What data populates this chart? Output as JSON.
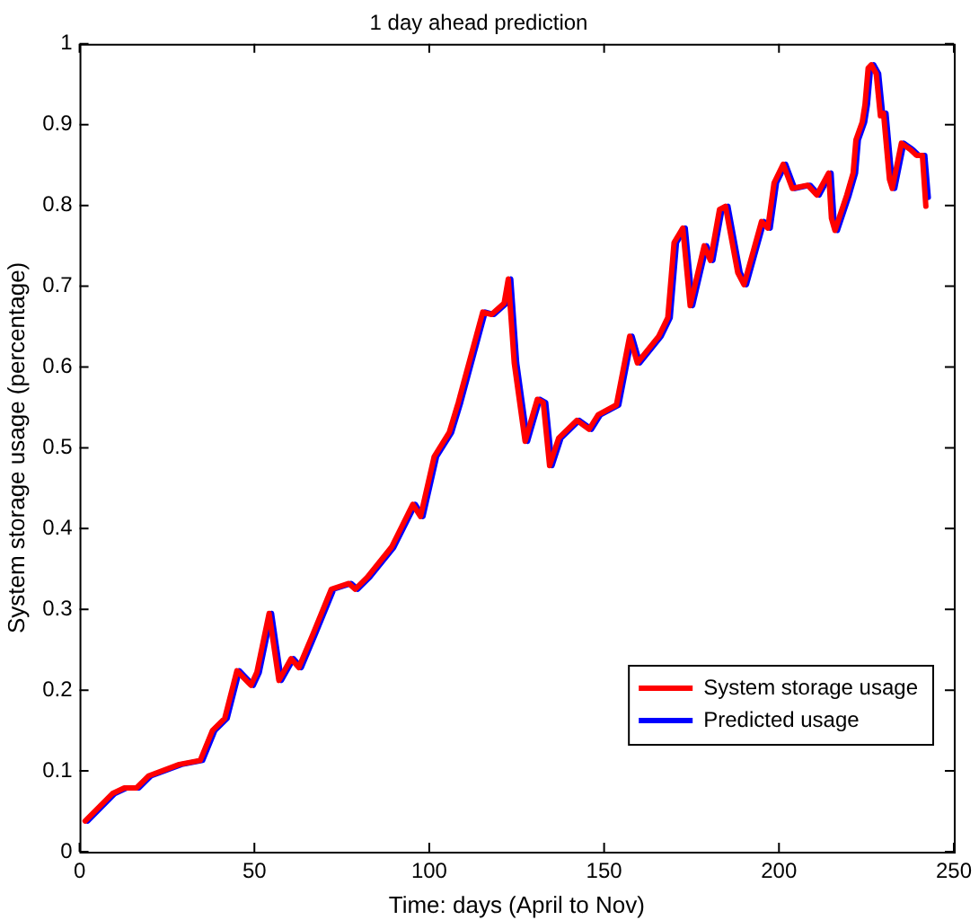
{
  "chart_data": {
    "type": "line",
    "title": "1 day ahead prediction",
    "xlabel": "Time: days (April to Nov)",
    "ylabel": "System storage usage (percentage)",
    "xlim": [
      0,
      250
    ],
    "xticks": [
      0,
      50,
      100,
      150,
      200,
      250
    ],
    "ylim": [
      0,
      1
    ],
    "yticks": [
      0,
      0.1,
      0.2,
      0.3,
      0.4,
      0.5,
      0.6,
      0.7,
      0.8,
      0.9,
      1
    ],
    "grid": false,
    "legend": "bottom right",
    "marker": "none",
    "line_style": "solid",
    "series": [
      {
        "name": "System storage usage",
        "color": "#ff0000",
        "x": [
          1.6,
          9.4,
          12.8,
          16.3,
          19.8,
          28.5,
          34.5,
          38,
          41.5,
          45,
          49,
          50.7,
          54.2,
          57,
          60.5,
          62.7,
          66.7,
          72,
          77,
          78.8,
          82.3,
          89.2,
          95.3,
          97.5,
          101.4,
          105.7,
          108.3,
          115.3,
          117.8,
          121.4,
          122.6,
          124.3,
          127.4,
          130.9,
          132.6,
          134.4,
          137,
          142.2,
          145.7,
          148.3,
          153.5,
          157.3,
          159.5,
          165.6,
          168.2,
          170,
          172.5,
          174.6,
          178.6,
          180.4,
          183,
          184.7,
          188.2,
          190,
          195,
          196.8,
          198.6,
          201.2,
          203.8,
          208.2,
          210.8,
          214.2,
          215,
          216,
          219.4,
          221.2,
          222,
          223.8,
          224.6,
          225.5,
          226.4,
          227.8,
          229,
          229.9,
          231.6,
          232.4,
          233.6,
          235,
          237.6,
          239.3,
          241,
          242
        ],
        "values": [
          0.038,
          0.072,
          0.079,
          0.079,
          0.094,
          0.108,
          0.113,
          0.15,
          0.165,
          0.224,
          0.206,
          0.222,
          0.295,
          0.212,
          0.239,
          0.228,
          0.269,
          0.325,
          0.332,
          0.325,
          0.34,
          0.377,
          0.43,
          0.415,
          0.489,
          0.519,
          0.556,
          0.668,
          0.665,
          0.679,
          0.709,
          0.605,
          0.508,
          0.56,
          0.556,
          0.478,
          0.512,
          0.534,
          0.523,
          0.541,
          0.553,
          0.638,
          0.605,
          0.638,
          0.661,
          0.754,
          0.772,
          0.676,
          0.75,
          0.732,
          0.795,
          0.799,
          0.717,
          0.702,
          0.78,
          0.772,
          0.828,
          0.851,
          0.821,
          0.825,
          0.813,
          0.84,
          0.784,
          0.769,
          0.813,
          0.84,
          0.881,
          0.903,
          0.925,
          0.97,
          0.974,
          0.963,
          0.911,
          0.914,
          0.832,
          0.821,
          0.847,
          0.877,
          0.869,
          0.862,
          0.862,
          0.799
        ]
      },
      {
        "name": "Predicted usage",
        "color": "#0000ff",
        "x": [
          2.3,
          10.1,
          13.5,
          17,
          20.5,
          29.2,
          35.2,
          38.7,
          42.2,
          45.7,
          49.7,
          51.4,
          54.9,
          57.7,
          61.2,
          63.4,
          67.4,
          72.7,
          77.7,
          79.5,
          83,
          89.9,
          96,
          98.2,
          102.1,
          106.4,
          109,
          116,
          118.5,
          122.1,
          123.3,
          125,
          128.1,
          131.6,
          133.3,
          135.1,
          137.7,
          142.9,
          146.4,
          149,
          154.2,
          158,
          160.2,
          166.3,
          168.9,
          170.7,
          173.2,
          175.3,
          179.3,
          181.1,
          183.7,
          185.4,
          188.9,
          190.7,
          195.7,
          197.5,
          199.3,
          201.9,
          204.5,
          208.9,
          211.5,
          214.9,
          215.7,
          216.7,
          220.1,
          221.9,
          222.7,
          224.5,
          225.3,
          226.2,
          227.1,
          228.5,
          229.7,
          230.6,
          232.3,
          233.1,
          234.3,
          235.7,
          238.3,
          240,
          241.7,
          242.7
        ],
        "values": [
          0.038,
          0.072,
          0.079,
          0.079,
          0.094,
          0.108,
          0.113,
          0.15,
          0.165,
          0.224,
          0.206,
          0.222,
          0.295,
          0.212,
          0.239,
          0.228,
          0.269,
          0.325,
          0.332,
          0.325,
          0.34,
          0.377,
          0.43,
          0.415,
          0.489,
          0.519,
          0.556,
          0.668,
          0.665,
          0.679,
          0.709,
          0.605,
          0.508,
          0.56,
          0.556,
          0.478,
          0.512,
          0.534,
          0.523,
          0.541,
          0.553,
          0.638,
          0.605,
          0.638,
          0.661,
          0.754,
          0.772,
          0.676,
          0.75,
          0.732,
          0.795,
          0.799,
          0.717,
          0.702,
          0.78,
          0.772,
          0.828,
          0.851,
          0.821,
          0.825,
          0.813,
          0.84,
          0.784,
          0.769,
          0.813,
          0.84,
          0.881,
          0.903,
          0.925,
          0.97,
          0.974,
          0.963,
          0.911,
          0.914,
          0.832,
          0.821,
          0.847,
          0.877,
          0.869,
          0.862,
          0.862,
          0.81
        ]
      }
    ]
  }
}
